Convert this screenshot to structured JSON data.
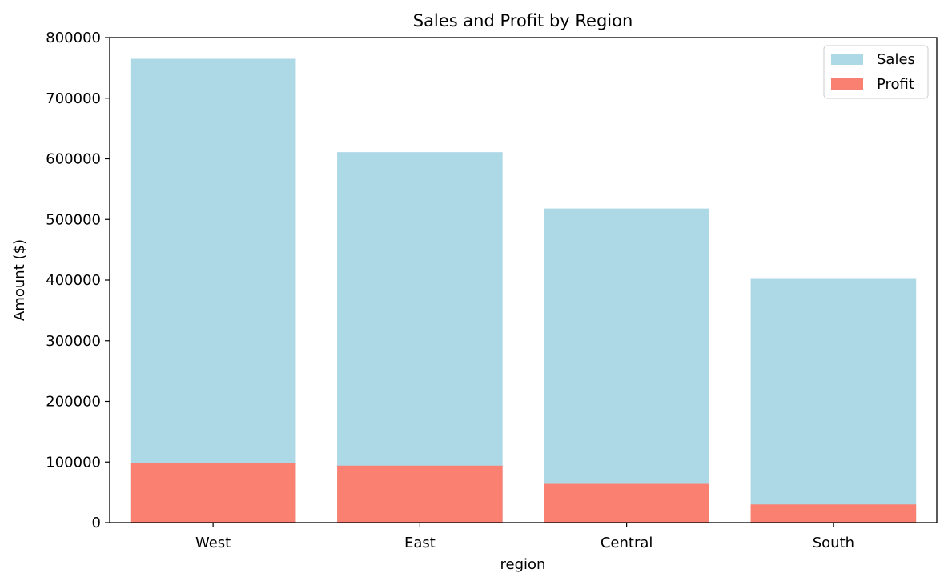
{
  "chart_data": {
    "type": "bar",
    "title": "Sales and Profit by Region",
    "xlabel": "region",
    "ylabel": "Amount ($)",
    "categories": [
      "West",
      "East",
      "Central",
      "South"
    ],
    "series": [
      {
        "name": "Sales",
        "color": "#add8e6",
        "values": [
          765000,
          611000,
          518000,
          402000
        ]
      },
      {
        "name": "Profit",
        "color": "#fa8072",
        "values": [
          98000,
          94000,
          64000,
          30000
        ]
      }
    ],
    "ylim": [
      0,
      800000
    ],
    "yticks": [
      0,
      100000,
      200000,
      300000,
      400000,
      500000,
      600000,
      700000,
      800000
    ],
    "ytick_labels": [
      "0",
      "100000",
      "200000",
      "300000",
      "400000",
      "500000",
      "600000",
      "700000",
      "800000"
    ],
    "legend": {
      "position": "top-right",
      "items": [
        "Sales",
        "Profit"
      ]
    },
    "grid": false
  }
}
